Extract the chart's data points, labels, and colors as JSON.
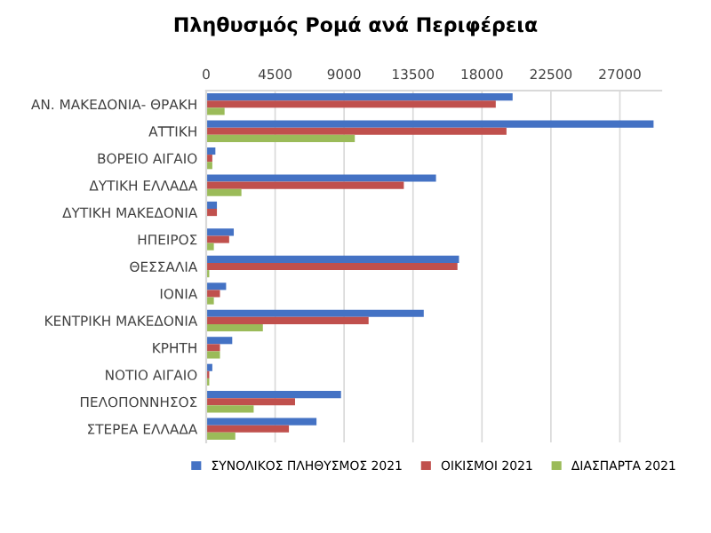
{
  "chart_data": {
    "type": "bar",
    "orientation": "horizontal",
    "title": "Πληθυσμός Ρομά ανά Περιφέρεια",
    "categories": [
      "ΑΝ. ΜΑΚΕΔΟΝΙΑ- ΘΡΑΚΗ",
      "ΑΤΤΙΚΗ",
      "ΒΟΡΕΙΟ ΑΙΓΑΙΟ",
      "ΔΥΤΙΚΗ ΕΛΛΑΔΑ",
      "ΔΥΤΙΚΗ ΜΑΚΕΔΟΝΙΑ",
      "ΗΠΕΙΡΟΣ",
      "ΘΕΣΣΑΛΙΑ",
      "ΙΟΝΙΑ",
      "ΚΕΝΤΡΙΚΗ ΜΑΚΕΔΟΝΙΑ",
      "ΚΡΗΤΗ",
      "ΝΟΤΙΟ ΑΙΓΑΙΟ",
      "ΠΕΛΟΠΟΝΝΗΣΟΣ",
      "ΣΤΕΡΕΑ ΕΛΛΑΔΑ"
    ],
    "series": [
      {
        "name": "ΣΥΝΟΛΙΚΟΣ ΠΛΗΘΥΣΜΟΣ 2021",
        "color": "#4472c4",
        "values": [
          20000,
          29200,
          600,
          15000,
          700,
          1800,
          16500,
          1300,
          14200,
          1700,
          400,
          8800,
          7200
        ]
      },
      {
        "name": "ΟΙΚΙΣΜΟΙ 2021",
        "color": "#c0504d",
        "values": [
          18900,
          19600,
          400,
          12900,
          700,
          1500,
          16400,
          900,
          10600,
          900,
          200,
          5800,
          5400
        ]
      },
      {
        "name": "ΔΙΑΣΠΑΡΤΑ 2021",
        "color": "#9bbb59",
        "values": [
          1200,
          9700,
          400,
          2300,
          0,
          500,
          200,
          500,
          3700,
          900,
          200,
          3100,
          1900
        ]
      }
    ],
    "xlim": [
      0,
      29700
    ],
    "xticks": [
      0,
      4500,
      9000,
      13500,
      18000,
      22500,
      27000
    ],
    "grid": "x",
    "legend": "bottom"
  }
}
